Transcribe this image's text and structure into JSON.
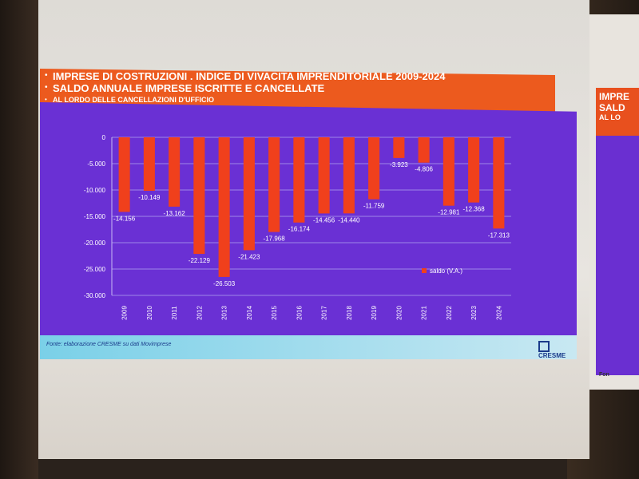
{
  "slide": {
    "title_line1": "IMPRESE DI COSTRUZIONI . INDICE DI VIVACITA IMPRENDITORIALE 2009-2024",
    "title_line2": "SALDO ANNUALE IMPRESE ISCRITTE E CANCELLATE",
    "title_line3": "AL LORDO DELLE CANCELLAZIONI D'UFFICIO",
    "source": "Fonte: elaborazione CRESME su dati Movimprese",
    "logo": "CRESME"
  },
  "next_slide": {
    "line1": "IMPRE",
    "line2": "SALD",
    "line3": "AL LO",
    "footer": "Fon"
  },
  "colors": {
    "bar": "#f0401c",
    "background": "#6a30d4",
    "band": "#ec5a1e",
    "text": "#ffffff"
  },
  "chart_data": {
    "type": "bar",
    "categories": [
      "2009",
      "2010",
      "2011",
      "2012",
      "2013",
      "2014",
      "2015",
      "2016",
      "2017",
      "2018",
      "2019",
      "2020",
      "2021",
      "2022",
      "2023",
      "2024"
    ],
    "series": [
      {
        "name": "saldo (V.A.)",
        "values": [
          -14156,
          -10149,
          -13162,
          -22129,
          -26503,
          -21423,
          -17968,
          -16174,
          -14456,
          -14440,
          -11759,
          -3923,
          -4806,
          -12981,
          -12368,
          -17313
        ]
      }
    ],
    "data_labels": [
      "-14.156",
      "-10.149",
      "-13.162",
      "-22.129",
      "-26.503",
      "-21.423",
      "-17.968",
      "-16.174",
      "-14.456",
      "-14.440",
      "-11.759",
      "-3.923",
      "-4.806",
      "-12.981",
      "-12.368",
      "-17.313"
    ],
    "y_ticks": [
      0,
      -5000,
      -10000,
      -15000,
      -20000,
      -25000,
      -30000
    ],
    "y_tick_labels": [
      "0",
      "-5.000",
      "-10.000",
      "-15.000",
      "-20.000",
      "-25.000",
      "-30.000"
    ],
    "ylim": [
      -30000,
      0
    ],
    "grid": true,
    "legend": "bottom-right"
  }
}
